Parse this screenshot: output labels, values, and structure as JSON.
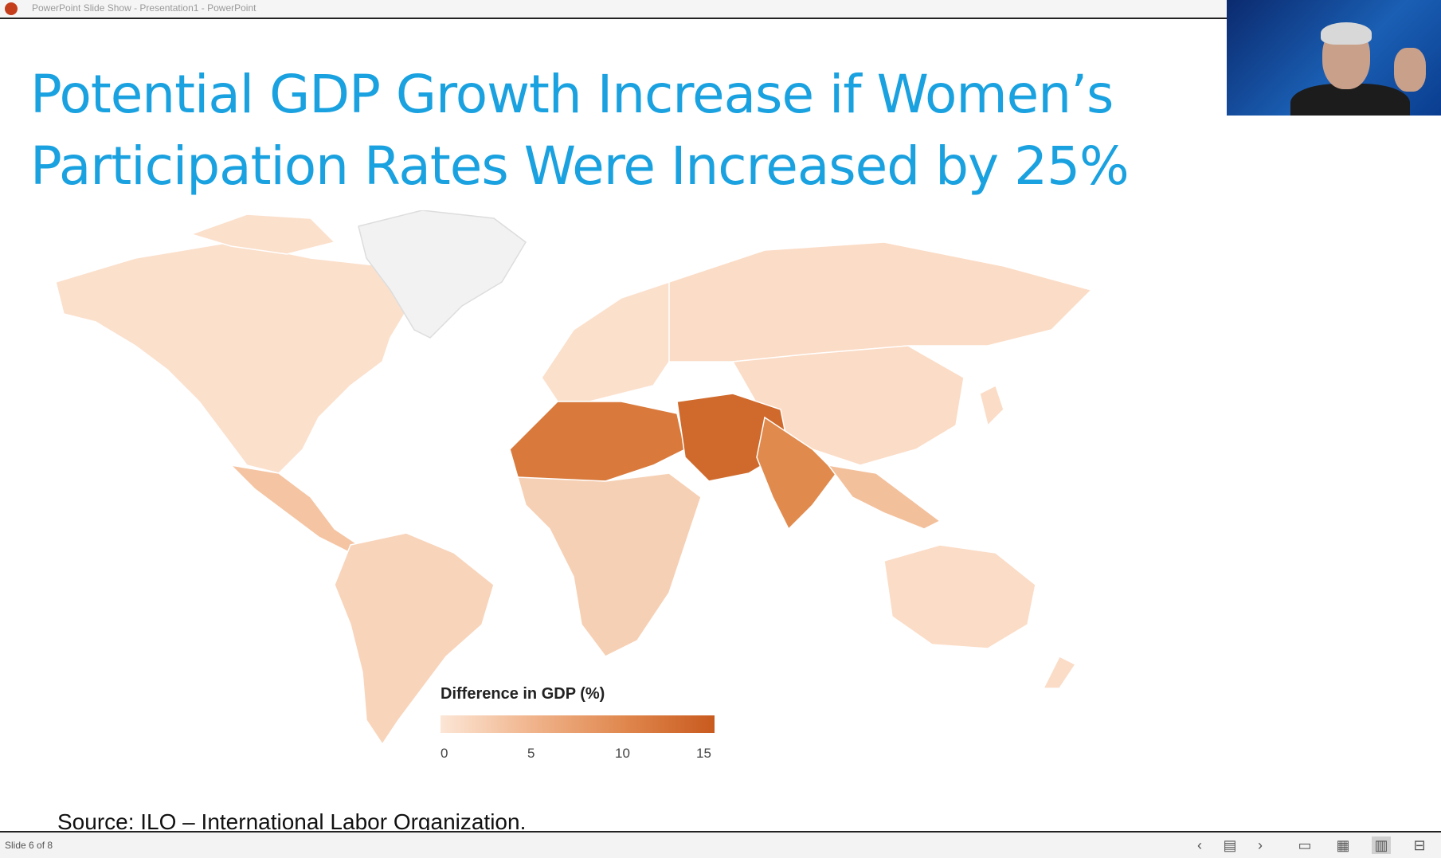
{
  "window": {
    "title": "PowerPoint Slide Show  -  Presentation1 - PowerPoint"
  },
  "slide": {
    "title_line1": "Potential GDP Growth Increase if Women’s",
    "title_line2": "Participation Rates Were Increased by 25%",
    "legend": {
      "title": "Difference in GDP (%)",
      "ticks": [
        "0",
        "5",
        "10",
        "15"
      ],
      "colors": [
        "#fce6d6",
        "#f0b48c",
        "#e0884f",
        "#c95a1e"
      ]
    },
    "source": "Source: ILO – International Labor Organization."
  },
  "statusbar": {
    "slide_indicator": "Slide 6 of 8",
    "icons": [
      "chevron-left-icon",
      "notes-icon",
      "chevron-right-icon",
      "normal-view-icon",
      "slide-sorter-icon",
      "reading-view-icon",
      "slideshow-icon"
    ]
  },
  "colors": {
    "title": "#1aa1e0",
    "low": "#fce6d6",
    "mid": "#f0b48c",
    "high": "#e0884f",
    "max": "#c95a1e",
    "greenland": "#f2f2f2"
  }
}
